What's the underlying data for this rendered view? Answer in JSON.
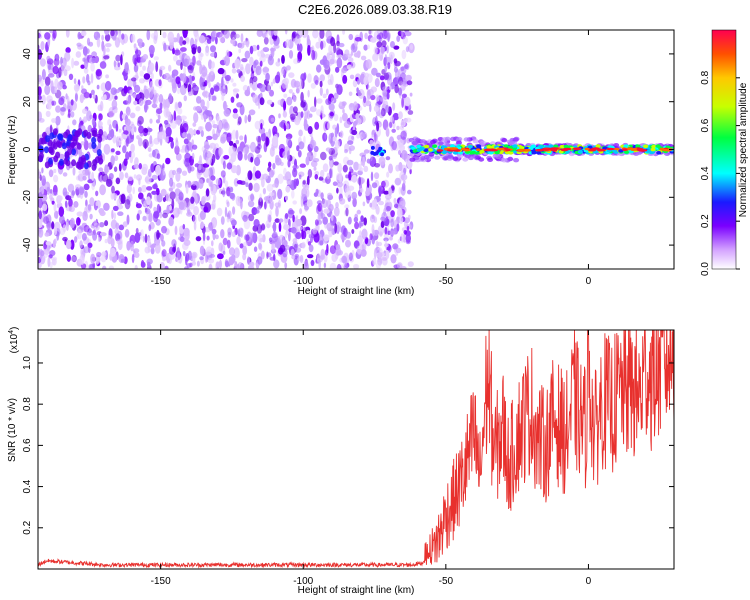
{
  "title": "C2E6.2026.089.03.38.R19",
  "chart_data": [
    {
      "type": "heatmap",
      "name": "spectrogram",
      "xlabel": "Height of straight line (km)",
      "ylabel": "Frequency (Hz)",
      "xlim": [
        -193,
        30
      ],
      "ylim": [
        -50,
        50
      ],
      "xticks": [
        -150,
        -100,
        -50,
        0
      ],
      "yticks": [
        -40,
        -20,
        0,
        20,
        40
      ],
      "colorbar": {
        "label": "Normalized spectral amplitude",
        "range": [
          0,
          1
        ],
        "ticks": [
          "0.0",
          "0.2",
          "0.4",
          "0.6",
          "0.8"
        ],
        "tick_values": [
          0,
          0.2,
          0.4,
          0.6,
          0.8
        ]
      },
      "regions": [
        {
          "description": "scattered noise",
          "x": [
            -193,
            -62
          ],
          "y": [
            -50,
            50
          ],
          "amplitude": 0.05
        },
        {
          "description": "signal band",
          "x": [
            -62,
            30
          ],
          "y": [
            -3,
            3
          ],
          "amplitude": 0.9
        }
      ]
    },
    {
      "type": "line",
      "name": "snr",
      "xlabel": "Height of straight line (km)",
      "ylabel": "SNR (10 * v/v)",
      "scale_label": "(x10",
      "scale_exp": "4",
      "scale_close": ")",
      "xlim": [
        -193,
        30
      ],
      "ylim": [
        0,
        1.16
      ],
      "xticks": [
        -150,
        -100,
        -50,
        0
      ],
      "yticks": [
        0.2,
        0.4,
        0.6,
        0.8,
        1.0
      ],
      "ytick_labels": [
        "0.2",
        "0.4",
        "0.6",
        "0.8",
        "1.0"
      ],
      "color": "#e8302d",
      "series": [
        {
          "x": [
            -193,
            -190,
            -180,
            -170,
            -160,
            -150,
            -140,
            -130,
            -120,
            -110,
            -100,
            -90,
            -80,
            -70,
            -62,
            -58,
            -55,
            -52,
            -50,
            -48,
            -45,
            -42,
            -40,
            -38,
            -36,
            -35,
            -33,
            -30,
            -28,
            -25,
            -22,
            -20,
            -18,
            -15,
            -12,
            -10,
            -8,
            -5,
            -3,
            -1,
            0,
            2,
            5,
            8,
            10,
            12,
            15,
            18,
            20,
            22,
            25,
            28,
            30
          ],
          "y": [
            0.01,
            0.03,
            0.02,
            0.01,
            0.01,
            0.01,
            0.01,
            0.01,
            0.01,
            0.01,
            0.01,
            0.01,
            0.01,
            0.01,
            0.01,
            0.02,
            0.1,
            0.2,
            0.3,
            0.35,
            0.45,
            0.6,
            0.7,
            0.5,
            0.9,
            1.0,
            0.6,
            0.75,
            0.55,
            0.7,
            0.8,
            0.85,
            0.7,
            0.65,
            0.8,
            0.75,
            0.7,
            0.9,
            0.8,
            0.75,
            1.1,
            0.7,
            0.9,
            0.85,
            0.9,
            0.95,
            0.95,
            0.9,
            1.05,
            1.0,
            1.05,
            1.1,
            1.12
          ]
        }
      ]
    }
  ]
}
